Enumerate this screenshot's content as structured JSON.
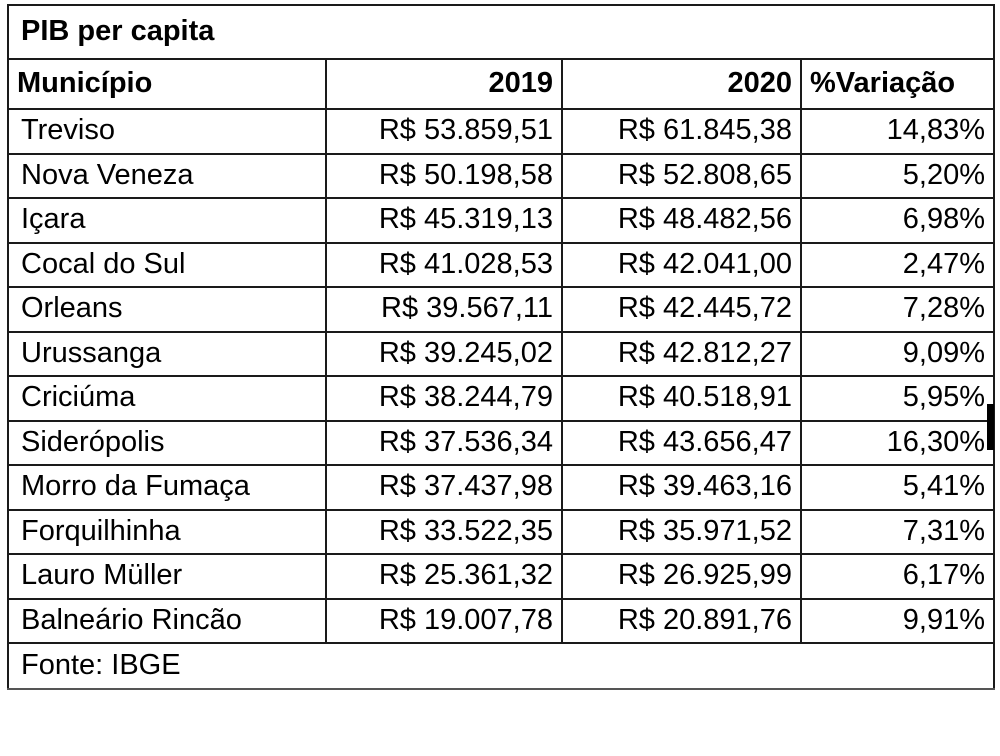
{
  "table": {
    "title": "PIB per capita",
    "columns": [
      "Município",
      "2019",
      "2020",
      "%Variação"
    ],
    "rows": [
      {
        "municipio": "Treviso",
        "y2019": "R$ 53.859,51",
        "y2020": "R$ 61.845,38",
        "variacao": "14,83%"
      },
      {
        "municipio": "Nova Veneza",
        "y2019": "R$ 50.198,58",
        "y2020": "R$ 52.808,65",
        "variacao": "5,20%"
      },
      {
        "municipio": "Içara",
        "y2019": "R$ 45.319,13",
        "y2020": "R$ 48.482,56",
        "variacao": "6,98%"
      },
      {
        "municipio": "Cocal do Sul",
        "y2019": "R$ 41.028,53",
        "y2020": "R$ 42.041,00",
        "variacao": "2,47%"
      },
      {
        "municipio": "Orleans",
        "y2019": "R$ 39.567,11",
        "y2020": "R$ 42.445,72",
        "variacao": "7,28%"
      },
      {
        "municipio": "Urussanga",
        "y2019": "R$ 39.245,02",
        "y2020": "R$ 42.812,27",
        "variacao": "9,09%"
      },
      {
        "municipio": "Criciúma",
        "y2019": "R$ 38.244,79",
        "y2020": "R$ 40.518,91",
        "variacao": "5,95%"
      },
      {
        "municipio": "Siderópolis",
        "y2019": "R$ 37.536,34",
        "y2020": "R$ 43.656,47",
        "variacao": "16,30%"
      },
      {
        "municipio": "Morro da Fumaça",
        "y2019": "R$ 37.437,98",
        "y2020": "R$ 39.463,16",
        "variacao": "5,41%"
      },
      {
        "municipio": "Forquilhinha",
        "y2019": "R$ 33.522,35",
        "y2020": "R$ 35.971,52",
        "variacao": "7,31%"
      },
      {
        "municipio": "Lauro Müller",
        "y2019": "R$ 25.361,32",
        "y2020": "R$ 26.925,99",
        "variacao": "6,17%"
      },
      {
        "municipio": "Balneário Rincão",
        "y2019": "R$ 19.007,78",
        "y2020": "R$ 20.891,76",
        "variacao": "9,91%"
      }
    ],
    "source": "Fonte: IBGE"
  },
  "chart_data": {
    "type": "table",
    "title": "PIB per capita",
    "source": "Fonte: IBGE",
    "currency": "R$",
    "columns": [
      "Município",
      "2019",
      "2020",
      "%Variação"
    ],
    "rows": [
      [
        "Treviso",
        53859.51,
        61845.38,
        14.83
      ],
      [
        "Nova Veneza",
        50198.58,
        52808.65,
        5.2
      ],
      [
        "Içara",
        45319.13,
        48482.56,
        6.98
      ],
      [
        "Cocal do Sul",
        41028.53,
        42041.0,
        2.47
      ],
      [
        "Orleans",
        39567.11,
        42445.72,
        7.28
      ],
      [
        "Urussanga",
        39245.02,
        42812.27,
        9.09
      ],
      [
        "Criciúma",
        38244.79,
        40518.91,
        5.95
      ],
      [
        "Siderópolis",
        37536.34,
        43656.47,
        16.3
      ],
      [
        "Morro da Fumaça",
        37437.98,
        39463.16,
        5.41
      ],
      [
        "Forquilhinha",
        33522.35,
        35971.52,
        7.31
      ],
      [
        "Lauro Müller",
        25361.32,
        26925.99,
        6.17
      ],
      [
        "Balneário Rincão",
        19007.78,
        20891.76,
        9.91
      ]
    ]
  }
}
